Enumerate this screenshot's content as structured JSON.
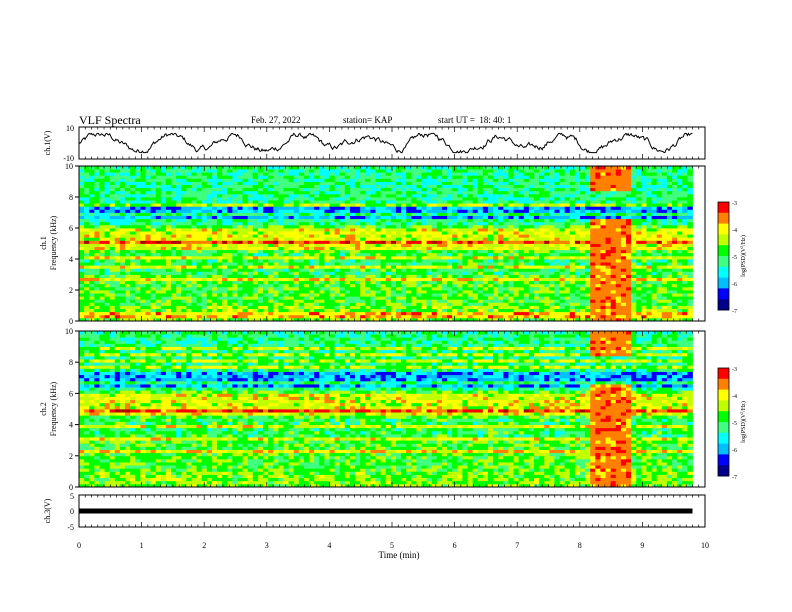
{
  "header": {
    "title": "VLF Spectra",
    "date": "Feb. 27, 2022",
    "station": "station= KAP",
    "start_time": "start UT =  18: 40: 1"
  },
  "chart_data": [
    {
      "type": "line",
      "ylabel": "ch.1(V)",
      "ylim": [
        -10,
        10
      ],
      "yticks": [
        "10",
        "-10"
      ],
      "xlim": [
        0,
        10
      ],
      "grid": false,
      "description_series": "waveform amplitude fluctuating roughly between -6 and 6 V over 0–9.8 min"
    },
    {
      "type": "heatmap",
      "ylabel": "ch.1\nFrequency (kHz)",
      "ylabel_lines": [
        "ch.1",
        "Frequency (kHz)"
      ],
      "ylim": [
        0,
        10
      ],
      "yticks": [
        "0",
        "2",
        "4",
        "6",
        "8",
        "10"
      ],
      "xlim": [
        0,
        10
      ],
      "data_extent_min": 9.8,
      "colorbar": {
        "label": "log(PSD)(V²/Hz)",
        "label_main": "log(PSD)(V",
        "label_sup": "2",
        "label_tail": "/Hz)",
        "range": [
          -7,
          -3
        ],
        "ticks": [
          "-3",
          "-4",
          "-5",
          "-6",
          "-7"
        ]
      },
      "burst_interval_min": [
        8.2,
        8.85
      ]
    },
    {
      "type": "heatmap",
      "ylabel": "ch.2\nFrequency (kHz)",
      "ylabel_lines": [
        "ch.2",
        "Frequency (kHz)"
      ],
      "ylim": [
        0,
        10
      ],
      "yticks": [
        "0",
        "2",
        "4",
        "6",
        "8",
        "10"
      ],
      "xlim": [
        0,
        10
      ],
      "data_extent_min": 9.8,
      "colorbar": {
        "label": "log(PSD)(V²/Hz)",
        "label_main": "log(PSD)(V",
        "label_sup": "2",
        "label_tail": "/Hz)",
        "range": [
          -7,
          -3
        ],
        "ticks": [
          "-3",
          "-4",
          "-5",
          "-6",
          "-7"
        ]
      },
      "burst_interval_min": [
        8.2,
        8.85
      ]
    },
    {
      "type": "line",
      "ylabel": "ch.3(V)",
      "ylim": [
        -5,
        5
      ],
      "yticks": [
        "5",
        "0",
        "-5"
      ],
      "xlim": [
        0,
        10
      ],
      "xlabel": "Time (min)",
      "xticks": [
        "0",
        "1",
        "2",
        "3",
        "4",
        "5",
        "6",
        "7",
        "8",
        "9",
        "10"
      ],
      "series_value_approx": 0,
      "grid": false
    }
  ],
  "colormap": [
    "#00008b",
    "#0000ff",
    "#00bfff",
    "#00ffff",
    "#40ff80",
    "#00ff00",
    "#c0ff00",
    "#ffff00",
    "#ff8000",
    "#ff0000",
    "#b00000",
    "#ffffff"
  ]
}
